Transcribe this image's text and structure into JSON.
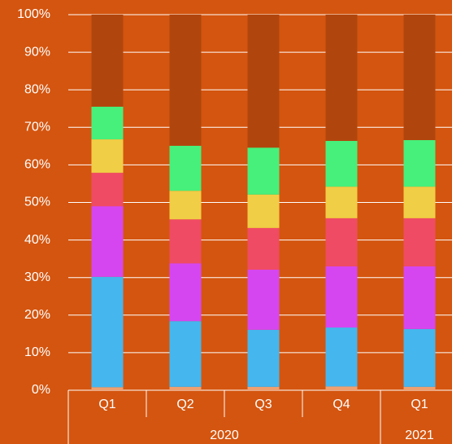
{
  "chart_data": {
    "type": "stacked_bar_100",
    "categories": [
      "Q1",
      "Q2",
      "Q3",
      "Q4",
      "Q1"
    ],
    "groups": [
      {
        "label": "2020",
        "span": 4
      },
      {
        "label": "2021",
        "span": 1
      }
    ],
    "series": [
      {
        "color": "#f0a070",
        "values": [
          0.8,
          0.9,
          0.9,
          1.0,
          0.9
        ]
      },
      {
        "color": "#45b6ee",
        "values": [
          29.4,
          17.5,
          15.2,
          15.7,
          15.4
        ]
      },
      {
        "color": "#d646f0",
        "values": [
          18.8,
          15.4,
          16.0,
          16.3,
          16.7
        ]
      },
      {
        "color": "#f04b64",
        "values": [
          8.9,
          11.7,
          11.1,
          12.8,
          12.8
        ]
      },
      {
        "color": "#f0ce46",
        "values": [
          8.9,
          7.6,
          8.9,
          8.4,
          8.4
        ]
      },
      {
        "color": "#46f07a",
        "values": [
          8.7,
          12.0,
          12.5,
          12.2,
          12.4
        ]
      },
      {
        "color": "#b0460e",
        "values": [
          24.5,
          34.9,
          35.4,
          33.6,
          33.4
        ]
      }
    ],
    "ylim": [
      0,
      100
    ],
    "yticks": [
      {
        "value": 0,
        "label": "0%"
      },
      {
        "value": 10,
        "label": "10%"
      },
      {
        "value": 20,
        "label": "20%"
      },
      {
        "value": 30,
        "label": "30%"
      },
      {
        "value": 40,
        "label": "40%"
      },
      {
        "value": 50,
        "label": "50%"
      },
      {
        "value": 60,
        "label": "60%"
      },
      {
        "value": 70,
        "label": "70%"
      },
      {
        "value": 80,
        "label": "80%"
      },
      {
        "value": 90,
        "label": "90%"
      },
      {
        "value": 100,
        "label": "100%"
      }
    ],
    "grid": true
  }
}
